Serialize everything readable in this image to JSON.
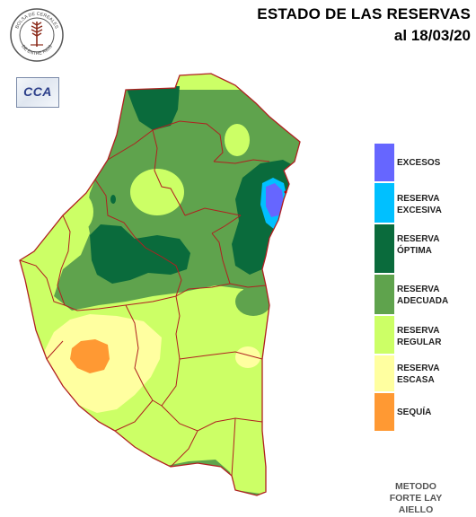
{
  "title": {
    "line1": "ESTADO DE LAS RESERVAS",
    "line2": "al 18/03/20"
  },
  "logo": {
    "text_top": "BOLSA DE CEREALES",
    "text_bottom": "DE ENTRE RIOS",
    "icon": "wheat-seal-icon"
  },
  "cca_badge": {
    "text": "CCA"
  },
  "legend": {
    "items": [
      {
        "label": "EXCESOS",
        "color": "#6666ff"
      },
      {
        "label": "RESERVA\nEXCESIVA",
        "color": "#00c0ff"
      },
      {
        "label": "RESERVA\nÓPTIMA",
        "color": "#0a6b3c"
      },
      {
        "label": "RESERVA\nADECUADA",
        "color": "#5fa34d"
      },
      {
        "label": "RESERVA\nREGULAR",
        "color": "#ccff66"
      },
      {
        "label": "RESERVA\nESCASA",
        "color": "#ffffa0"
      },
      {
        "label": "SEQUÍA",
        "color": "#ff9933"
      }
    ]
  },
  "method": {
    "text": "METODO\nFORTE LAY\nAIELLO"
  },
  "colors": {
    "adecuada": "#5fa34d",
    "optima": "#0a6b3c",
    "regular": "#ccff66",
    "escasa": "#ffffa0",
    "sequia": "#ff9933",
    "excesiva": "#00c0ff",
    "excesos": "#6666ff",
    "borders": "#b02020"
  }
}
